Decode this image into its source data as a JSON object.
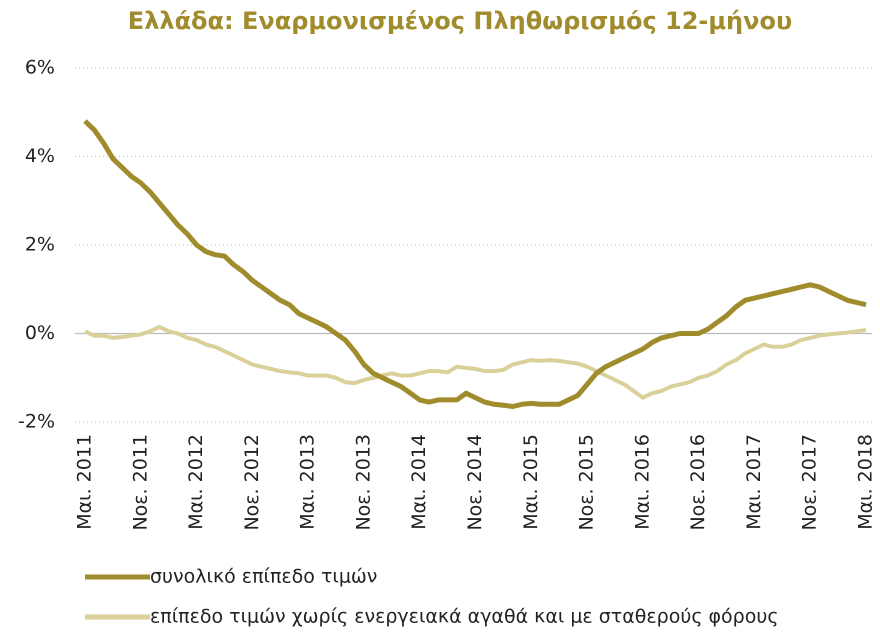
{
  "chart_data": {
    "type": "line",
    "title": "Ελλάδα: Εναρμονισμένος Πληθωρισμός 12-μήνου",
    "categories": [
      "Μαι. 2011",
      null,
      null,
      null,
      null,
      null,
      "Νοε. 2011",
      null,
      null,
      null,
      null,
      null,
      "Μαι. 2012",
      null,
      null,
      null,
      null,
      null,
      "Νοε. 2012",
      null,
      null,
      null,
      null,
      null,
      "Μαι. 2013",
      null,
      null,
      null,
      null,
      null,
      "Νοε. 2013",
      null,
      null,
      null,
      null,
      null,
      "Μαι. 2014",
      null,
      null,
      null,
      null,
      null,
      "Νοε. 2014",
      null,
      null,
      null,
      null,
      null,
      "Μαι. 2015",
      null,
      null,
      null,
      null,
      null,
      "Νοε. 2015",
      null,
      null,
      null,
      null,
      null,
      "Μαι. 2016",
      null,
      null,
      null,
      null,
      null,
      "Νοε. 2016",
      null,
      null,
      null,
      null,
      null,
      "Μαι. 2017",
      null,
      null,
      null,
      null,
      null,
      "Νοε. 2017",
      null,
      null,
      null,
      null,
      null,
      "Μαι. 2018"
    ],
    "series": [
      {
        "name": "συνολικό επίπεδο τιμών",
        "color": "#a08c2c",
        "values": [
          4.8,
          4.6,
          4.3,
          3.95,
          3.75,
          3.55,
          3.4,
          3.2,
          2.95,
          2.7,
          2.45,
          2.25,
          2.0,
          1.85,
          1.78,
          1.75,
          1.55,
          1.4,
          1.2,
          1.05,
          0.9,
          0.75,
          0.65,
          0.45,
          0.35,
          0.25,
          0.15,
          0.0,
          -0.15,
          -0.4,
          -0.7,
          -0.9,
          -1.0,
          -1.1,
          -1.2,
          -1.35,
          -1.5,
          -1.55,
          -1.5,
          -1.5,
          -1.5,
          -1.35,
          -1.45,
          -1.55,
          -1.6,
          -1.62,
          -1.65,
          -1.6,
          -1.58,
          -1.6,
          -1.6,
          -1.6,
          -1.5,
          -1.4,
          -1.15,
          -0.9,
          -0.75,
          -0.65,
          -0.55,
          -0.45,
          -0.35,
          -0.2,
          -0.1,
          -0.05,
          0.0,
          0.0,
          0.0,
          0.1,
          0.25,
          0.4,
          0.6,
          0.75,
          0.8,
          0.85,
          0.9,
          0.95,
          1.0,
          1.05,
          1.1,
          1.05,
          0.95,
          0.85,
          0.75,
          0.7,
          0.65
        ]
      },
      {
        "name": "επίπεδο τιμών χωρίς ενεργειακά αγαθά και με σταθερούς φόρους",
        "color": "#d9d09a",
        "values": [
          0.05,
          -0.05,
          -0.05,
          -0.1,
          -0.08,
          -0.05,
          -0.02,
          0.05,
          0.15,
          0.05,
          0.0,
          -0.1,
          -0.15,
          -0.25,
          -0.3,
          -0.4,
          -0.5,
          -0.6,
          -0.7,
          -0.75,
          -0.8,
          -0.85,
          -0.88,
          -0.9,
          -0.95,
          -0.95,
          -0.95,
          -1.0,
          -1.1,
          -1.12,
          -1.05,
          -1.0,
          -0.95,
          -0.9,
          -0.95,
          -0.95,
          -0.9,
          -0.85,
          -0.85,
          -0.88,
          -0.75,
          -0.78,
          -0.8,
          -0.85,
          -0.85,
          -0.82,
          -0.7,
          -0.65,
          -0.6,
          -0.62,
          -0.6,
          -0.62,
          -0.65,
          -0.68,
          -0.75,
          -0.85,
          -0.95,
          -1.05,
          -1.15,
          -1.3,
          -1.45,
          -1.35,
          -1.3,
          -1.2,
          -1.15,
          -1.1,
          -1.0,
          -0.95,
          -0.85,
          -0.7,
          -0.6,
          -0.45,
          -0.35,
          -0.25,
          -0.3,
          -0.3,
          -0.25,
          -0.15,
          -0.1,
          -0.05,
          -0.02,
          0.0,
          0.02,
          0.05,
          0.08
        ]
      }
    ],
    "ylim": [
      -2,
      6
    ],
    "yticks": [
      {
        "value": -2,
        "label": "-2%"
      },
      {
        "value": 0,
        "label": "0%"
      },
      {
        "value": 2,
        "label": "2%"
      },
      {
        "value": 4,
        "label": "4%"
      },
      {
        "value": 6,
        "label": "6%"
      }
    ],
    "grid": true,
    "legend": "bottom"
  }
}
